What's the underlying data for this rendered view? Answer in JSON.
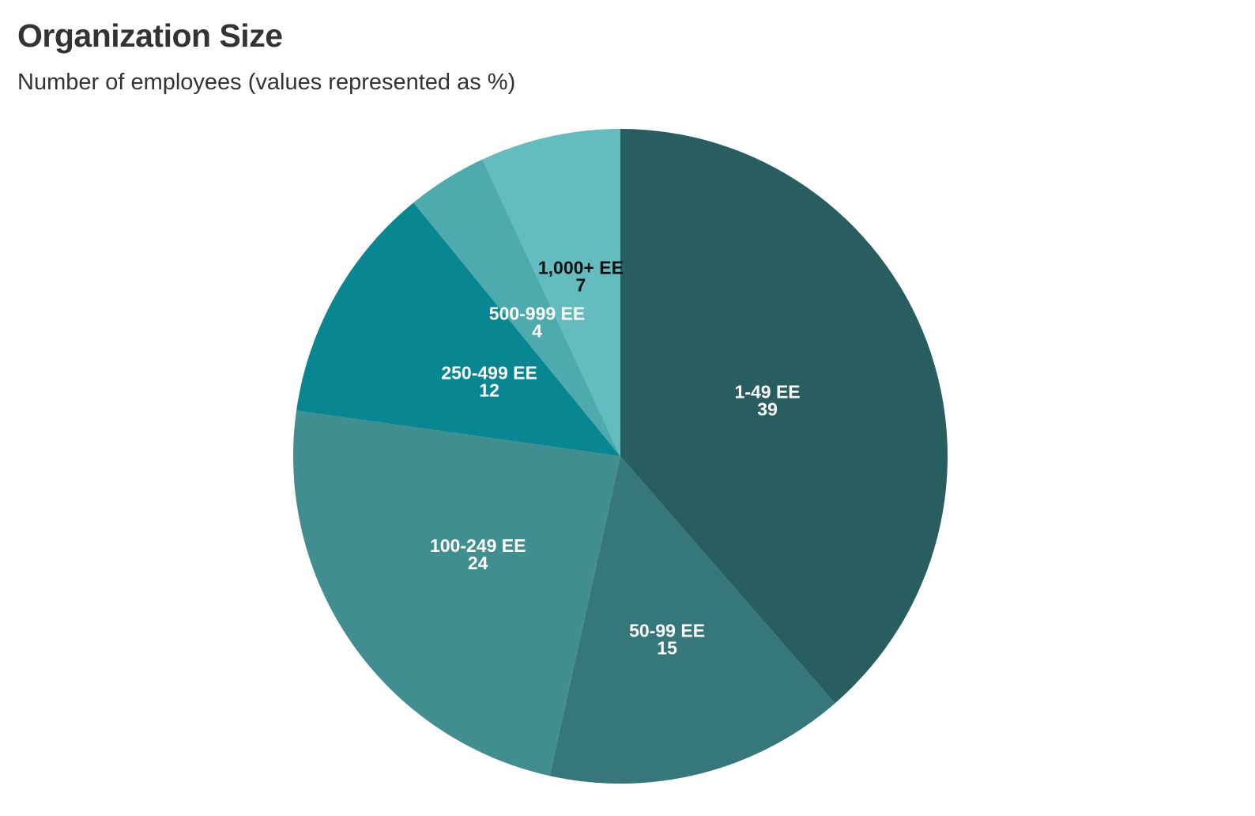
{
  "chart_data": {
    "type": "pie",
    "title": "Organization Size",
    "subtitle": "Number of employees (values represented as %)",
    "categories": [
      "1-49 EE",
      "50-99 EE",
      "100-249 EE",
      "250-499 EE",
      "500-999 EE",
      "1,000+ EE"
    ],
    "values": [
      39,
      15,
      24,
      12,
      4,
      7
    ],
    "colors": [
      "#285e5f",
      "#35777a",
      "#418e91",
      "#088793",
      "#4daaad",
      "#64bcbe"
    ],
    "label_colors": [
      "#ffffff",
      "#ffffff",
      "#ffffff",
      "#ffffff",
      "#ffffff",
      "#111111"
    ],
    "start_angle": "12 o'clock",
    "direction": "clockwise",
    "legend": "none"
  }
}
